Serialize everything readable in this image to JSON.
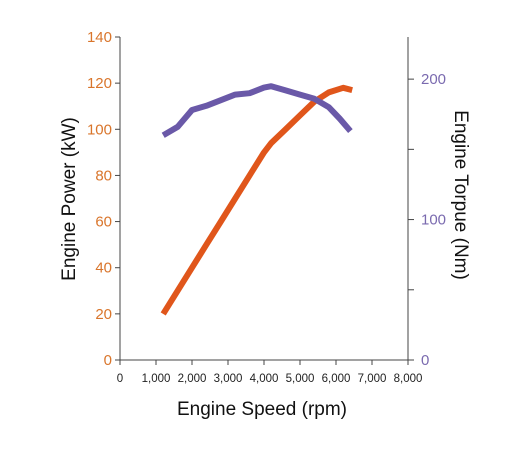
{
  "chart_data": {
    "type": "line",
    "xlabel": "Engine Speed (rpm)",
    "ylabel_left": "Engine Power (kW)",
    "ylabel_right": "Engine Torpue (Nm)",
    "x_ticks": [
      "0",
      "1,000",
      "2,000",
      "3,000",
      "4,000",
      "5,000",
      "6,000",
      "7,000",
      "8,000"
    ],
    "y_left_ticks": [
      "0",
      "20",
      "40",
      "60",
      "80",
      "100",
      "120",
      "140"
    ],
    "y_right_ticks": [
      "0",
      "100",
      "200"
    ],
    "xlim": [
      0,
      8000
    ],
    "ylim_left": [
      0,
      140
    ],
    "ylim_right": [
      0,
      230
    ],
    "colors": {
      "power": "#e0561b",
      "torque": "#6a59a8",
      "left_axis": "#d9752b",
      "right_axis": "#7a6aaf",
      "frame": "#444444"
    },
    "series": [
      {
        "key": "power",
        "axis": "left",
        "x": [
          1200,
          1600,
          2000,
          2400,
          2800,
          3200,
          3600,
          4000,
          4200,
          4600,
          5000,
          5400,
          5800,
          6200,
          6450
        ],
        "y": [
          20,
          30,
          40,
          50,
          60,
          70,
          80,
          90,
          94,
          100,
          106,
          112,
          116,
          118,
          117
        ]
      },
      {
        "key": "torque",
        "axis": "right",
        "x": [
          1200,
          1600,
          2000,
          2400,
          2800,
          3200,
          3600,
          4000,
          4200,
          4600,
          5000,
          5400,
          5800,
          6100,
          6400
        ],
        "y": [
          160,
          166,
          178,
          181,
          185,
          189,
          190,
          194,
          195,
          192,
          189,
          186,
          180,
          172,
          163
        ]
      }
    ]
  }
}
